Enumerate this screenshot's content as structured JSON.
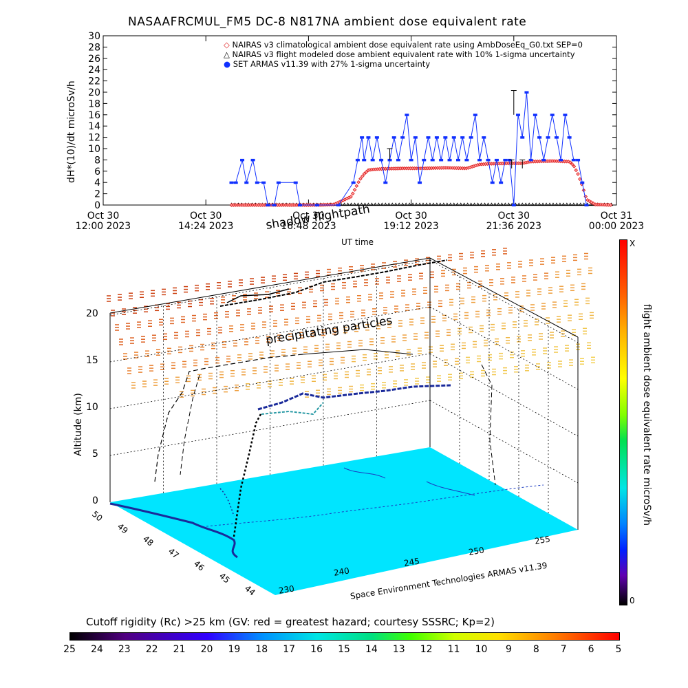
{
  "top_chart_title": "NASAAFRCMUL_FM5 DC-8   N817NA ambient dose equivalent rate",
  "top_ylabel": "dH*(10)/dt microSv/h",
  "top_xlabel": "UT time",
  "time_ticks": [
    {
      "line1": "Oct 30",
      "line2": "12:00 2023"
    },
    {
      "line1": "Oct 30",
      "line2": "14:24 2023"
    },
    {
      "line1": "Oct 30",
      "line2": "16:48 2023"
    },
    {
      "line1": "Oct 30",
      "line2": "19:12 2023"
    },
    {
      "line1": "Oct 30",
      "line2": "21:36 2023"
    },
    {
      "line1": "Oct 31",
      "line2": "00:00 2023"
    }
  ],
  "legend": [
    {
      "symbol": "◇",
      "color": "#e02020",
      "label": "NAIRAS v3 climatological ambient dose equivalent rate using AmbDoseEq_G0.txt SEP=0"
    },
    {
      "symbol": "△",
      "color": "#000000",
      "label": "NAIRAS v3 flight modeled dose ambient equivalent rate with 10% 1-sigma uncertainty"
    },
    {
      "symbol": "●",
      "color": "#1030ff",
      "label": "SET ARMAS v11.39 with 27% 1-sigma uncertainty"
    }
  ],
  "annotations": {
    "flightpath": "shadow flightpath",
    "particles": "precipitating particles",
    "credit": "Space Environment Technologies ARMAS v11.39"
  },
  "three_d": {
    "zlabel": "Altitude (km)",
    "z_ticks": [
      "0",
      "5",
      "10",
      "15",
      "20"
    ],
    "lat_ticks": [
      "50",
      "49",
      "48",
      "47",
      "46",
      "45",
      "44"
    ],
    "lon_ticks": [
      "230",
      "240",
      "245",
      "250",
      "255"
    ]
  },
  "colorbar_right": {
    "label": "flight ambient dose equivalent rate microSv/h",
    "top": "X",
    "bottom": "0"
  },
  "colorbar_bottom": {
    "title": "Cutoff rigidity (Rc) >25 km (GV: red = greatest hazard; courtesy SSSRC; Kp=2)",
    "ticks": [
      "25",
      "24",
      "23",
      "22",
      "21",
      "20",
      "19",
      "18",
      "17",
      "16",
      "15",
      "14",
      "13",
      "12",
      "11",
      "10",
      "9",
      "8",
      "7",
      "6",
      "5"
    ]
  },
  "colors": {
    "armas": "#1030ff",
    "nairas_clim": "#e02020",
    "nairas_flight": "#000000",
    "ground": "#00e5ff"
  },
  "chart_data": {
    "type": "scatter",
    "title": "NASAAFRCMUL_FM5 DC-8   N817NA ambient dose equivalent rate",
    "xlabel": "UT time",
    "ylabel": "dH*(10)/dt microSv/h",
    "xlim_hours_UT": [
      12.0,
      24.0
    ],
    "ylim": [
      0,
      30
    ],
    "y_ticks": [
      0,
      2,
      4,
      6,
      8,
      10,
      12,
      14,
      16,
      18,
      20,
      22,
      24,
      26,
      28,
      30
    ],
    "legend_position": "top-right",
    "series": [
      {
        "name": "NAIRAS v3 climatological ambient dose equivalent rate using AmbDoseEq_G0.txt SEP=0",
        "marker": "diamond",
        "x": [
          15.0,
          16.0,
          17.0,
          17.4,
          17.8,
          17.9,
          18.0,
          18.1,
          18.2,
          18.3,
          18.5,
          19.0,
          19.5,
          20.0,
          20.5,
          20.8,
          21.0,
          21.5,
          21.8,
          22.0,
          22.5,
          22.9,
          23.0,
          23.1,
          23.2,
          23.3,
          23.5,
          23.9
        ],
        "y": [
          0.0,
          0.0,
          0.0,
          0.1,
          1.5,
          3.0,
          4.5,
          5.5,
          6.2,
          6.3,
          6.4,
          6.5,
          6.5,
          6.6,
          6.5,
          7.2,
          7.3,
          7.4,
          7.4,
          7.7,
          7.8,
          7.7,
          7.0,
          5.5,
          3.5,
          1.0,
          0.1,
          0.0
        ]
      },
      {
        "name": "NAIRAS v3 flight modeled dose ambient equivalent rate with 10% 1-sigma uncertainty",
        "marker": "triangle",
        "x": [
          15.0,
          17.0,
          18.0,
          19.0,
          20.0,
          21.0,
          22.0,
          23.0,
          23.9
        ],
        "y": [
          0.1,
          0.1,
          0.1,
          0.1,
          0.1,
          0.1,
          0.1,
          0.1,
          0.1
        ]
      },
      {
        "name": "SET ARMAS v11.39 with 27% 1-sigma uncertainty",
        "marker": "circle",
        "x": [
          15.0,
          15.1,
          15.25,
          15.35,
          15.5,
          15.6,
          15.75,
          15.85,
          16.0,
          16.1,
          16.5,
          16.6,
          17.0,
          17.5,
          17.85,
          17.95,
          18.05,
          18.1,
          18.2,
          18.3,
          18.4,
          18.5,
          18.6,
          18.7,
          18.8,
          18.9,
          19.0,
          19.1,
          19.2,
          19.3,
          19.4,
          19.5,
          19.6,
          19.7,
          19.8,
          19.9,
          20.0,
          20.1,
          20.2,
          20.3,
          20.4,
          20.5,
          20.6,
          20.7,
          20.8,
          20.9,
          21.0,
          21.1,
          21.2,
          21.3,
          21.4,
          21.5,
          21.6,
          21.7,
          21.8,
          21.9,
          22.0,
          22.1,
          22.2,
          22.3,
          22.4,
          22.5,
          22.6,
          22.7,
          22.8,
          22.9,
          23.0,
          23.1,
          23.2,
          23.3
        ],
        "y": [
          4,
          4,
          8,
          4,
          8,
          4,
          4,
          0,
          0,
          4,
          4,
          0,
          0,
          0,
          4,
          8,
          12,
          8,
          12,
          8,
          12,
          8,
          4,
          8,
          12,
          8,
          12,
          16,
          8,
          12,
          4,
          8,
          12,
          8,
          12,
          8,
          12,
          8,
          12,
          8,
          12,
          8,
          12,
          16,
          8,
          12,
          8,
          4,
          8,
          4,
          8,
          8,
          0,
          16,
          12,
          20,
          8,
          16,
          12,
          8,
          12,
          16,
          12,
          8,
          16,
          12,
          8,
          8,
          4,
          0
        ]
      }
    ]
  }
}
